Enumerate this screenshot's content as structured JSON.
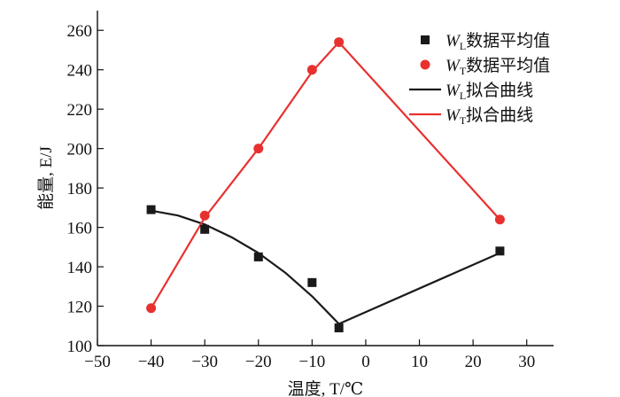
{
  "chart_data": {
    "type": "scatter",
    "xlabel": "温度, T/℃",
    "ylabel": "能量, E/J",
    "xlim": [
      -50,
      35
    ],
    "ylim": [
      100,
      270
    ],
    "xticks": [
      -50,
      -40,
      -30,
      -20,
      -10,
      0,
      10,
      20,
      30
    ],
    "xtick_labels": [
      "−50",
      "−40",
      "−30",
      "−20",
      "−10",
      "0",
      "10",
      "20",
      "30"
    ],
    "yticks": [
      100,
      120,
      140,
      160,
      180,
      200,
      220,
      240,
      260
    ],
    "ytick_labels": [
      "100",
      "120",
      "140",
      "160",
      "180",
      "200",
      "220",
      "240",
      "260"
    ],
    "grid": false,
    "legend_position": "top-right",
    "series": [
      {
        "name": "WL数据平均值",
        "legend_main": "W",
        "legend_sub": "L",
        "legend_suffix": "数据平均值",
        "kind": "scatter",
        "marker": "square",
        "color": "#1a1a1a",
        "x": [
          -40,
          -30,
          -20,
          -10,
          -5,
          25
        ],
        "y": [
          169,
          159,
          145,
          132,
          109,
          148
        ]
      },
      {
        "name": "WT数据平均值",
        "legend_main": "W",
        "legend_sub": "T",
        "legend_suffix": "数据平均值",
        "kind": "scatter",
        "marker": "circle",
        "color": "#e8312f",
        "x": [
          -40,
          -30,
          -20,
          -10,
          -5,
          25
        ],
        "y": [
          119,
          166,
          200,
          240,
          254,
          164
        ]
      },
      {
        "name": "WL拟合曲线",
        "legend_main": "W",
        "legend_sub": "L",
        "legend_suffix": "拟合曲线",
        "kind": "line",
        "color": "#1a1a1a",
        "x": [
          -40,
          -35,
          -30,
          -25,
          -20,
          -15,
          -10,
          -5,
          25
        ],
        "y": [
          168.5,
          166,
          161.5,
          155,
          147,
          137,
          125,
          111,
          147
        ]
      },
      {
        "name": "WT拟合曲线",
        "legend_main": "W",
        "legend_sub": "T",
        "legend_suffix": "拟合曲线",
        "kind": "line",
        "color": "#e8312f",
        "x": [
          -40,
          -30,
          -20,
          -10,
          -5,
          25
        ],
        "y": [
          119,
          165,
          200,
          239,
          254,
          164
        ]
      }
    ]
  }
}
